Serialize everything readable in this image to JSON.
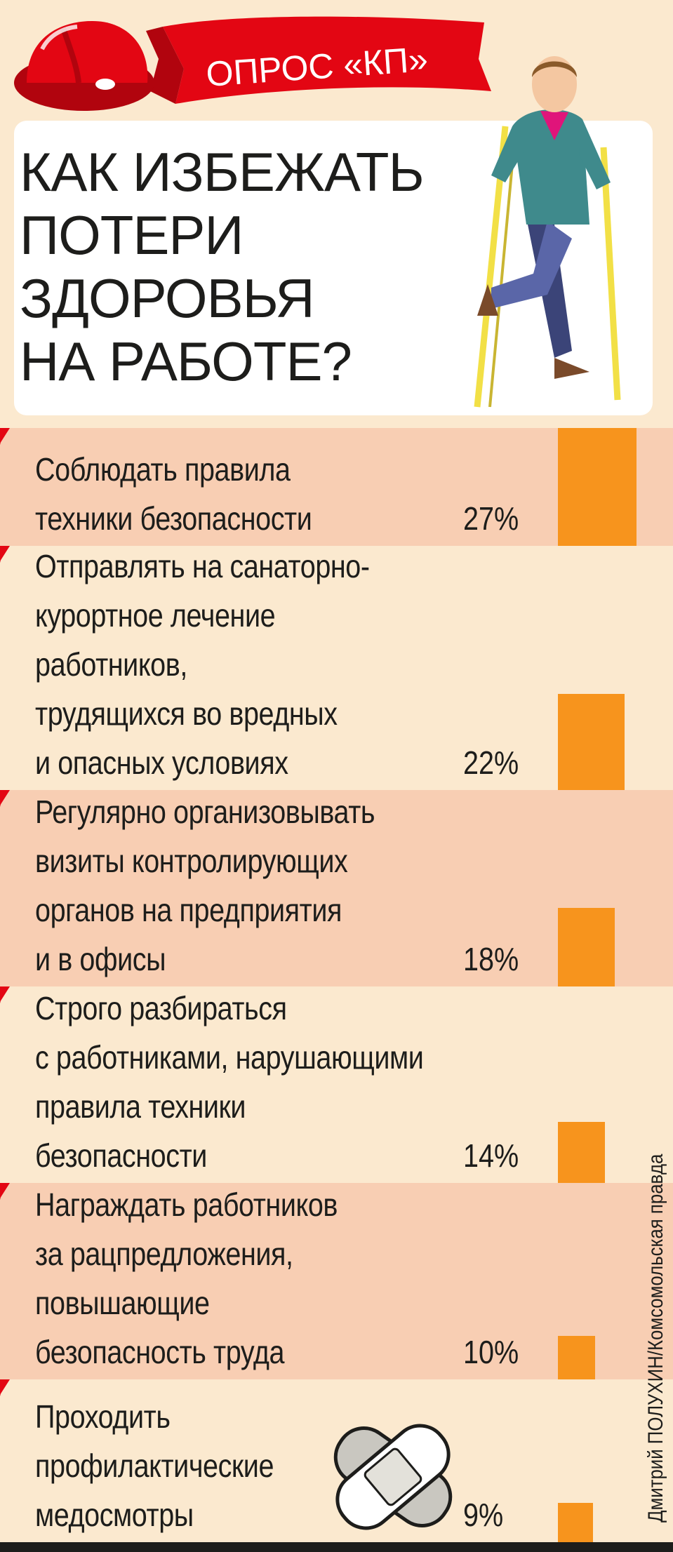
{
  "banner": {
    "label": "ОПРОС «КП»"
  },
  "title": "КАК ИЗБЕЖАТЬ\nПОТЕРИ\nЗДОРОВЬЯ\nНА РАБОТЕ?",
  "credit": "Дмитрий ПОЛУХИН/Комсомольская правда",
  "colors": {
    "accent_red": "#e30613",
    "bar_orange": "#f7941d",
    "row_shade": "#f8ceb3",
    "background": "#fbe9cf"
  },
  "icons": [
    "hard-hat-icon",
    "man-on-crutches-illustration",
    "adhesive-plaster-icon"
  ],
  "chart_data": {
    "type": "bar",
    "orientation": "horizontal-label-vertical-bars",
    "unit": "%",
    "categories": [
      "Соблюдать правила\nтехники безопасности",
      "Отправлять на санаторно-\nкурортное лечение\nработников,\nтрудящихся во вредных\nи опасных условиях",
      "Регулярно организовывать\nвизиты контролирующих\nорганов на предприятия\nи в офисы",
      "Строго разбираться\nс работниками, нарушающими\nправила техники\nбезопасности",
      "Награждать работников\nза рацпредложения,\nповышающие\nбезопасность труда",
      "Проходить\nпрофилактические\nмедосмотры"
    ],
    "values": [
      27,
      22,
      18,
      14,
      10,
      9
    ],
    "value_labels": [
      "27%",
      "22%",
      "18%",
      "14%",
      "10%",
      "9%"
    ]
  }
}
